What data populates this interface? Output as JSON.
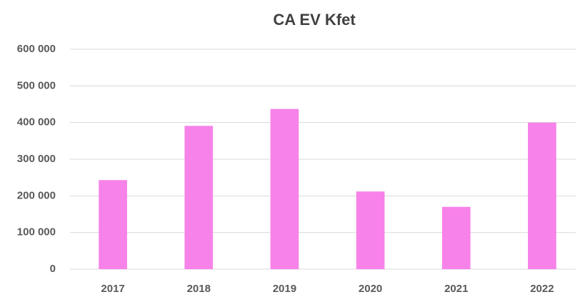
{
  "chart_data": {
    "type": "bar",
    "title": "CA EV Kfet",
    "categories": [
      "2017",
      "2018",
      "2019",
      "2020",
      "2021",
      "2022"
    ],
    "values": [
      243000,
      391000,
      437000,
      212000,
      170000,
      400000
    ],
    "color": "#f782e9",
    "ylim": [
      0,
      600000
    ],
    "yticks": [
      0,
      {
        "value": 100000,
        "label": "100 000"
      },
      {
        "value": 200000,
        "label": "200 000"
      },
      {
        "value": 300000,
        "label": "300 000"
      },
      {
        "value": 400000,
        "label": "400 000"
      },
      {
        "value": 500000,
        "label": "500 000"
      },
      {
        "value": 600000,
        "label": "600 000"
      }
    ],
    "grid": true
  }
}
